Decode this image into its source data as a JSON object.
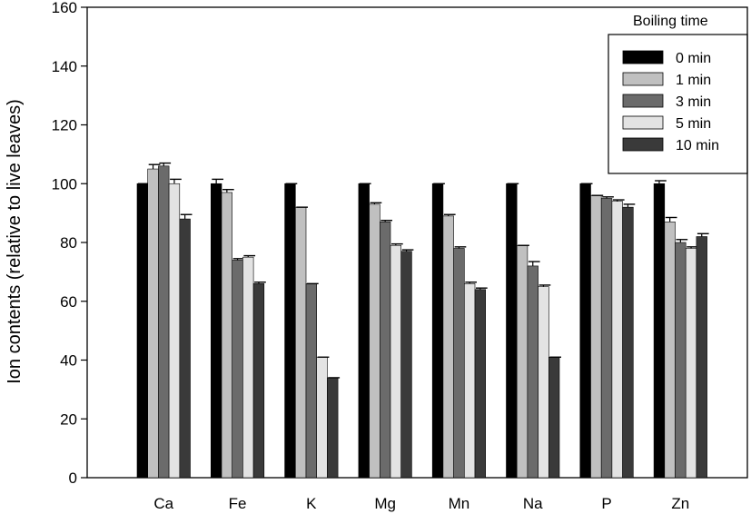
{
  "chart_data": {
    "type": "bar",
    "title": "",
    "xlabel": "",
    "ylabel": "Ion contents (relative to live leaves)",
    "ylim": [
      0,
      160
    ],
    "yticks": [
      0,
      20,
      40,
      60,
      80,
      100,
      120,
      140,
      160
    ],
    "grid": false,
    "legend_title": "Boiling time",
    "legend_position": "top-right",
    "categories": [
      "Ca",
      "Fe",
      "K",
      "Mg",
      "Mn",
      "Na",
      "P",
      "Zn"
    ],
    "series": [
      {
        "name": "0 min",
        "color": "#000000",
        "values": [
          100,
          100,
          100,
          100,
          100,
          100,
          100,
          100
        ],
        "errors": [
          0,
          1.5,
          0,
          0,
          0,
          0,
          0,
          1
        ]
      },
      {
        "name": "1 min",
        "color": "#c0c0c0",
        "values": [
          105,
          97,
          92,
          93,
          89,
          79,
          96,
          87
        ],
        "errors": [
          1.5,
          1,
          0,
          0.5,
          0.5,
          0,
          0,
          1.5
        ]
      },
      {
        "name": "3 min",
        "color": "#6b6b6b",
        "values": [
          106,
          74,
          66,
          87,
          78,
          72,
          95,
          80
        ],
        "errors": [
          1,
          0.5,
          0,
          0.5,
          0.5,
          1.5,
          0.5,
          1
        ]
      },
      {
        "name": "5 min",
        "color": "#e3e3e3",
        "values": [
          100,
          75,
          41,
          79,
          66,
          65,
          94,
          78
        ],
        "errors": [
          1.5,
          0.5,
          0,
          0.5,
          0.5,
          0.5,
          0.5,
          0.5
        ]
      },
      {
        "name": "10 min",
        "color": "#3a3a3a",
        "values": [
          88,
          66,
          34,
          77,
          64,
          41,
          92,
          82
        ],
        "errors": [
          1.5,
          0.5,
          0,
          0.5,
          0.5,
          0,
          1,
          1
        ]
      }
    ]
  }
}
